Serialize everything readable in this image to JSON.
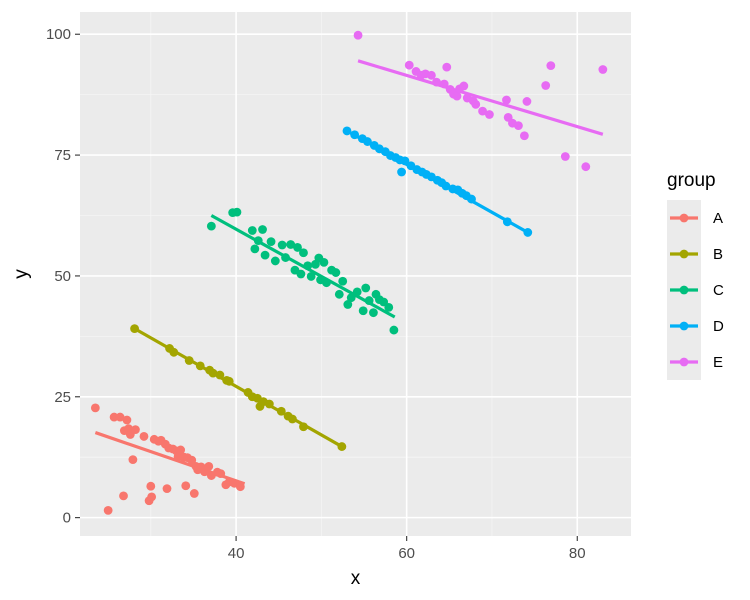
{
  "chart_data": {
    "type": "scatter",
    "title": "",
    "xlabel": "x",
    "ylabel": "y",
    "xlim": [
      21.7,
      86.3
    ],
    "ylim": [
      -3.8,
      104.6
    ],
    "xticks": [
      40,
      60,
      80
    ],
    "yticks": [
      0,
      25,
      50,
      75,
      100
    ],
    "xtick_labels": [
      "40",
      "60",
      "80"
    ],
    "ytick_labels": [
      "0",
      "25",
      "50",
      "75",
      "100"
    ],
    "grid": true,
    "legend": {
      "title": "group",
      "position": "right"
    },
    "series": [
      {
        "name": "A",
        "color": "#F8766D",
        "points": [
          [
            23.5,
            22.7
          ],
          [
            25,
            1.5
          ],
          [
            25.7,
            20.8
          ],
          [
            26.4,
            20.8
          ],
          [
            26.8,
            4.5
          ],
          [
            26.9,
            18
          ],
          [
            27.2,
            20.2
          ],
          [
            27.4,
            18.4
          ],
          [
            27.6,
            17.2
          ],
          [
            27.9,
            12
          ],
          [
            28.2,
            18.2
          ],
          [
            29.2,
            16.8
          ],
          [
            29.8,
            3.5
          ],
          [
            30,
            6.5
          ],
          [
            30.1,
            4.3
          ],
          [
            30.4,
            16.2
          ],
          [
            30.9,
            15.8
          ],
          [
            31.2,
            16
          ],
          [
            31.7,
            15.2
          ],
          [
            31.9,
            6
          ],
          [
            32.1,
            14.4
          ],
          [
            32.6,
            14.2
          ],
          [
            33,
            13.8
          ],
          [
            33.2,
            12.6
          ],
          [
            33.5,
            14
          ],
          [
            33.9,
            12.5
          ],
          [
            34.1,
            6.6
          ],
          [
            34.3,
            12.4
          ],
          [
            34.8,
            11.9
          ],
          [
            35.1,
            5
          ],
          [
            35.3,
            10.6
          ],
          [
            35.5,
            9.9
          ],
          [
            35.9,
            10.5
          ],
          [
            36.3,
            9.5
          ],
          [
            36.8,
            10.6
          ],
          [
            37.1,
            8.7
          ],
          [
            37.8,
            9.4
          ],
          [
            38.2,
            9.1
          ],
          [
            38.8,
            6.8
          ],
          [
            39.2,
            7.4
          ],
          [
            39.8,
            7.1
          ],
          [
            40.5,
            6.4
          ]
        ],
        "fit": [
          [
            23.5,
            17.6
          ],
          [
            41,
            7
          ]
        ]
      },
      {
        "name": "B",
        "color": "#A3A500",
        "points": [
          [
            28.1,
            39.1
          ],
          [
            32.2,
            35
          ],
          [
            32.7,
            34.2
          ],
          [
            34.5,
            32.5
          ],
          [
            35.8,
            31.4
          ],
          [
            36.9,
            30.5
          ],
          [
            37.3,
            29.9
          ],
          [
            38.1,
            29.5
          ],
          [
            38.9,
            28.4
          ],
          [
            39.2,
            28.2
          ],
          [
            41.4,
            25.9
          ],
          [
            41.9,
            25
          ],
          [
            42.5,
            24.7
          ],
          [
            42.8,
            23
          ],
          [
            43.2,
            24
          ],
          [
            43.9,
            23.5
          ],
          [
            45.3,
            22
          ],
          [
            46.1,
            21
          ],
          [
            46.6,
            20.4
          ],
          [
            47.9,
            18.8
          ],
          [
            52.4,
            14.7
          ]
        ],
        "fit": [
          [
            28.1,
            39.1
          ],
          [
            52.4,
            14.7
          ]
        ]
      },
      {
        "name": "C",
        "color": "#00BF7D",
        "points": [
          [
            37.1,
            60.3
          ],
          [
            39.6,
            63.1
          ],
          [
            40.1,
            63.2
          ],
          [
            41.9,
            59.4
          ],
          [
            42.2,
            55.6
          ],
          [
            42.6,
            57.3
          ],
          [
            43.1,
            59.6
          ],
          [
            43.4,
            54.3
          ],
          [
            44.1,
            57.1
          ],
          [
            44.6,
            53.1
          ],
          [
            45.4,
            56.4
          ],
          [
            45.8,
            53.8
          ],
          [
            46.4,
            56.5
          ],
          [
            46.9,
            51.2
          ],
          [
            47.2,
            55.9
          ],
          [
            47.6,
            50.4
          ],
          [
            47.9,
            54.8
          ],
          [
            48.4,
            52.1
          ],
          [
            48.8,
            49.9
          ],
          [
            49.3,
            52.4
          ],
          [
            49.7,
            53.7
          ],
          [
            49.9,
            49.2
          ],
          [
            50.3,
            52.8
          ],
          [
            50.6,
            48.6
          ],
          [
            51.2,
            51.2
          ],
          [
            51.7,
            50.7
          ],
          [
            52.1,
            46.2
          ],
          [
            52.5,
            48.9
          ],
          [
            53.1,
            44.1
          ],
          [
            53.5,
            45.5
          ],
          [
            54.2,
            46.7
          ],
          [
            54.9,
            42.8
          ],
          [
            55.2,
            47.5
          ],
          [
            55.6,
            44.9
          ],
          [
            56.1,
            42.4
          ],
          [
            56.4,
            46.2
          ],
          [
            56.8,
            45.1
          ],
          [
            57.3,
            44.6
          ],
          [
            57.9,
            43.5
          ],
          [
            58.5,
            38.8
          ]
        ],
        "fit": [
          [
            37.1,
            62.5
          ],
          [
            58.6,
            41.5
          ]
        ]
      },
      {
        "name": "D",
        "color": "#00B0F6",
        "points": [
          [
            53,
            80
          ],
          [
            53.9,
            79.2
          ],
          [
            54.8,
            78.4
          ],
          [
            55.4,
            77.8
          ],
          [
            56.2,
            77
          ],
          [
            56.8,
            76.3
          ],
          [
            57.5,
            75.7
          ],
          [
            58.1,
            74.9
          ],
          [
            58.7,
            74.5
          ],
          [
            59.2,
            74
          ],
          [
            59.4,
            71.5
          ],
          [
            59.8,
            73.8
          ],
          [
            60.5,
            72.8
          ],
          [
            61.2,
            72
          ],
          [
            61.8,
            71.5
          ],
          [
            62.3,
            71
          ],
          [
            62.9,
            70.5
          ],
          [
            63.6,
            69.8
          ],
          [
            64.1,
            69.3
          ],
          [
            64.6,
            68.6
          ],
          [
            65.4,
            68
          ],
          [
            66,
            67.8
          ],
          [
            66.5,
            67.1
          ],
          [
            67,
            66.6
          ],
          [
            67.6,
            65.9
          ],
          [
            71.8,
            61.2
          ],
          [
            74.2,
            59
          ]
        ],
        "fit": [
          [
            53,
            80
          ],
          [
            74.2,
            59
          ]
        ]
      },
      {
        "name": "E",
        "color": "#E76BF3",
        "points": [
          [
            54.3,
            99.8
          ],
          [
            60.3,
            93.6
          ],
          [
            61.1,
            92.3
          ],
          [
            61.7,
            91.5
          ],
          [
            62.2,
            91.8
          ],
          [
            62.9,
            91.5
          ],
          [
            63.5,
            90.1
          ],
          [
            64.4,
            89.7
          ],
          [
            64.7,
            93.2
          ],
          [
            65.1,
            88.6
          ],
          [
            65.5,
            87.6
          ],
          [
            65.9,
            87.2
          ],
          [
            66.2,
            88.7
          ],
          [
            66.7,
            89.3
          ],
          [
            67.1,
            86.8
          ],
          [
            67.8,
            86.2
          ],
          [
            68.1,
            85.5
          ],
          [
            68.9,
            84.1
          ],
          [
            69.7,
            83.4
          ],
          [
            71.7,
            86.4
          ],
          [
            71.9,
            82.8
          ],
          [
            72.4,
            81.6
          ],
          [
            73.1,
            81.1
          ],
          [
            73.8,
            79
          ],
          [
            74.1,
            86.1
          ],
          [
            76.3,
            89.4
          ],
          [
            76.9,
            93.5
          ],
          [
            78.6,
            74.7
          ],
          [
            81,
            72.6
          ],
          [
            83,
            92.7
          ]
        ],
        "fit": [
          [
            54.3,
            94.5
          ],
          [
            83,
            79.3
          ]
        ]
      }
    ]
  }
}
